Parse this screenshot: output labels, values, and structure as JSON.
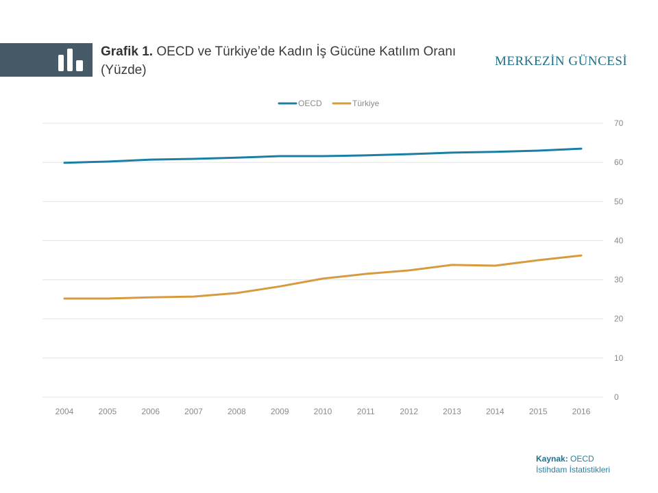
{
  "header": {
    "title_prefix": "Grafik 1.",
    "title_text": "OECD ve Türkiye’de Kadın İş Gücüne Katılım Oranı (Yüzde)",
    "brand": "MERKEZİN GÜNCESİ",
    "icon": "bar-chart-icon"
  },
  "source": {
    "label": "Kaynak:",
    "value": "OECD",
    "detail": "İstihdam İstatistikleri"
  },
  "colors": {
    "header_band": "#465a68",
    "oecd": "#1b7fa3",
    "turkiye": "#d89a3f",
    "grid": "#e3e3e3",
    "tick": "#8a8a8a"
  },
  "chart_data": {
    "type": "line",
    "x": [
      2004,
      2005,
      2006,
      2007,
      2008,
      2009,
      2010,
      2011,
      2012,
      2013,
      2014,
      2015,
      2016
    ],
    "series": [
      {
        "name": "OECD",
        "values": [
          59.9,
          60.2,
          60.7,
          60.9,
          61.2,
          61.6,
          61.6,
          61.8,
          62.1,
          62.5,
          62.7,
          63.0,
          63.5
        ]
      },
      {
        "name": "Türkiye",
        "values": [
          25.2,
          25.2,
          25.5,
          25.7,
          26.6,
          28.3,
          30.3,
          31.5,
          32.4,
          33.8,
          33.6,
          35.0,
          36.2
        ]
      }
    ],
    "yticks": [
      0,
      10,
      20,
      30,
      40,
      50,
      60,
      70
    ],
    "ylim": [
      0,
      70
    ],
    "y_axis_side": "right",
    "grid": true,
    "legend_position": "top-center"
  }
}
